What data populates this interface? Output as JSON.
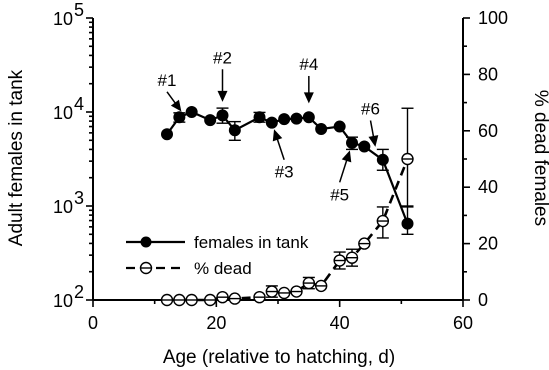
{
  "chart_data": {
    "type": "line",
    "title": "",
    "xlabel": "Age (relative to hatching, d)",
    "ylabel_left": "Adult females in tank",
    "ylabel_right": "% dead females",
    "xlim": [
      0,
      60
    ],
    "xticks": [
      0,
      20,
      40,
      60
    ],
    "xtick_labels": [
      "0",
      "20",
      "40",
      "60"
    ],
    "ylim_left": [
      100,
      100000
    ],
    "yscale_left": "log",
    "yticks_left": [
      100,
      1000,
      10000,
      100000
    ],
    "ytick_labels_left": [
      "10",
      "10",
      "10",
      "10"
    ],
    "ytick_exponents_left": [
      "2",
      "3",
      "4",
      "5"
    ],
    "ylim_right": [
      0,
      100
    ],
    "yticks_right": [
      0,
      20,
      40,
      60,
      80,
      100
    ],
    "ytick_labels_right": [
      "0",
      "20",
      "40",
      "60",
      "80",
      "100"
    ],
    "grid": false,
    "legend_position": "lower-left",
    "series": [
      {
        "name": "females in tank",
        "axis": "left",
        "line_style": "solid",
        "marker": "filled-circle",
        "color": "#000000",
        "x": [
          12,
          14,
          16,
          19,
          21,
          23,
          27,
          29,
          31,
          33,
          35,
          37,
          40,
          42,
          44,
          47,
          51
        ],
        "y": [
          5800,
          8800,
          10000,
          8200,
          9200,
          6400,
          8800,
          7700,
          8400,
          8500,
          8800,
          6600,
          7000,
          4700,
          4300,
          3100,
          650
        ],
        "err_low": [
          null,
          7800,
          null,
          null,
          7600,
          5000,
          7800,
          null,
          null,
          null,
          null,
          null,
          null,
          4000,
          null,
          2400,
          500
        ],
        "err_high": [
          null,
          9800,
          null,
          null,
          11000,
          7900,
          9900,
          null,
          null,
          null,
          null,
          null,
          null,
          5400,
          null,
          4000,
          1000
        ]
      },
      {
        "name": "% dead",
        "axis": "right",
        "line_style": "dashed",
        "marker": "open-circle-bar",
        "color": "#000000",
        "x": [
          12,
          14,
          16,
          19,
          21,
          23,
          27,
          29,
          31,
          33,
          35,
          37,
          40,
          42,
          44,
          47,
          51
        ],
        "y": [
          0,
          0,
          0,
          0,
          1,
          0.5,
          1,
          3,
          2.5,
          3,
          6,
          5,
          14,
          15,
          20,
          28,
          50
        ],
        "err_low": [
          null,
          null,
          null,
          null,
          null,
          null,
          null,
          1,
          null,
          null,
          4,
          null,
          11,
          12,
          null,
          22,
          33
        ],
        "err_high": [
          null,
          null,
          null,
          null,
          null,
          null,
          null,
          5,
          null,
          null,
          8,
          null,
          17,
          18,
          null,
          33,
          68
        ]
      }
    ],
    "annotations": [
      {
        "text": "#1",
        "arrow_to": [
          15,
          8800
        ],
        "label_at": [
          12,
          19000
        ]
      },
      {
        "text": "#2",
        "arrow_to": [
          21,
          10800
        ],
        "label_at": [
          21,
          33000
        ]
      },
      {
        "text": "#3",
        "arrow_to": [
          29,
          7700
        ],
        "label_at": [
          31,
          2000
        ]
      },
      {
        "text": "#4",
        "arrow_to": [
          35,
          10400
        ],
        "label_at": [
          35,
          28000
        ]
      },
      {
        "text": "#5",
        "arrow_to": [
          42,
          4600
        ],
        "label_at": [
          40,
          1150
        ]
      },
      {
        "text": "#6",
        "arrow_to": [
          46,
          3600
        ],
        "label_at": [
          45,
          9400
        ]
      }
    ]
  }
}
